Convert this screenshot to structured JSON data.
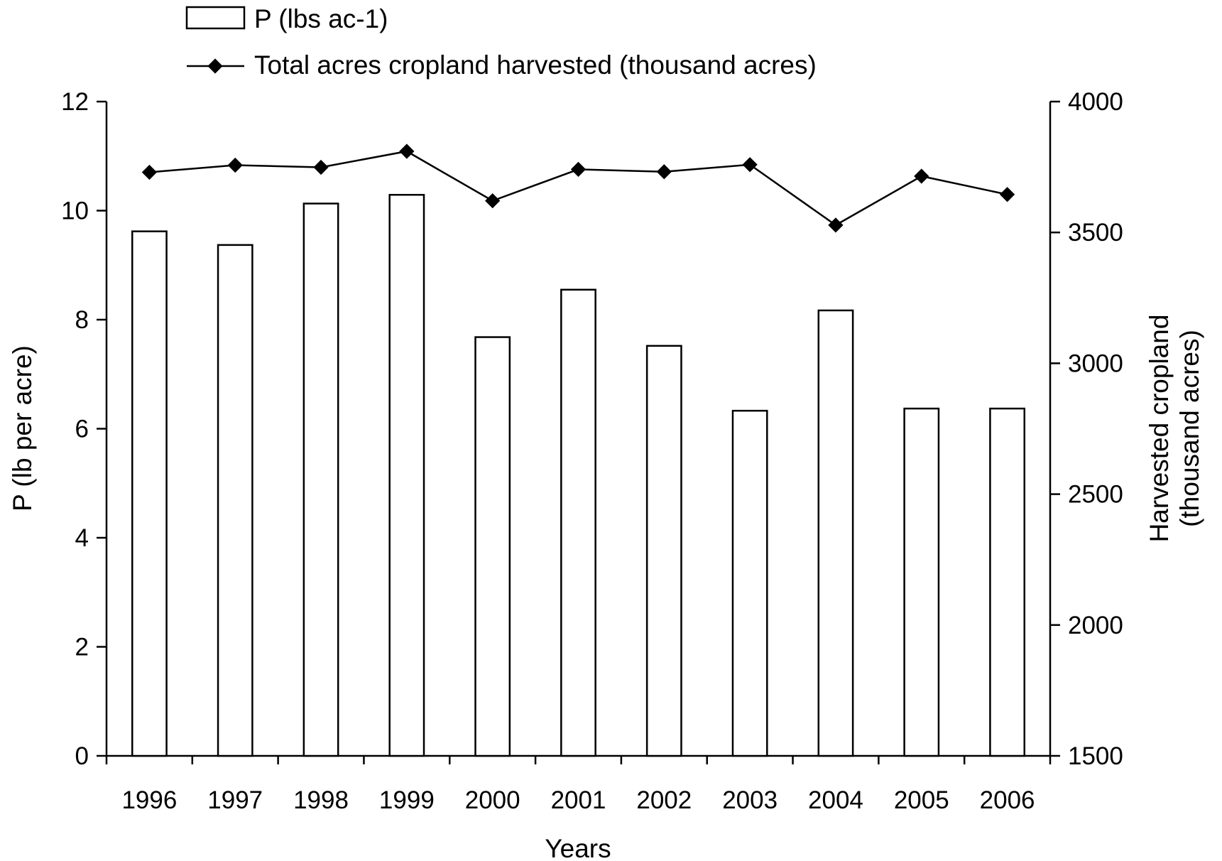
{
  "chart_data": {
    "type": "bar",
    "categories": [
      "1996",
      "1997",
      "1998",
      "1999",
      "2000",
      "2001",
      "2002",
      "2003",
      "2004",
      "2005",
      "2006"
    ],
    "series": [
      {
        "name": "P (lbs ac-1)",
        "type": "bar",
        "axis": "left",
        "values": [
          9.62,
          9.37,
          10.13,
          10.29,
          7.68,
          8.55,
          7.52,
          6.33,
          8.17,
          6.37,
          6.37
        ]
      },
      {
        "name": "Total acres cropland harvested (thousand acres)",
        "type": "line",
        "axis": "right",
        "values": [
          3730,
          3757,
          3749,
          3810,
          3621,
          3741,
          3732,
          3759,
          3528,
          3715,
          3645
        ]
      }
    ],
    "xlabel": "Years",
    "ylabel": "P (lb per acre)",
    "y2label": [
      "Harvested cropland",
      "(thousand acres)"
    ],
    "ylim": [
      0,
      12
    ],
    "yticks": [
      "0",
      "2",
      "4",
      "6",
      "8",
      "10",
      "12"
    ],
    "y2lim": [
      1500,
      4000
    ],
    "y2ticks": [
      "1500",
      "2000",
      "2500",
      "3000",
      "3500",
      "4000"
    ],
    "legend_position": "top",
    "grid": false,
    "colors": {
      "bar_fill": "#ffffff",
      "stroke": "#000000",
      "line": "#000000"
    }
  }
}
